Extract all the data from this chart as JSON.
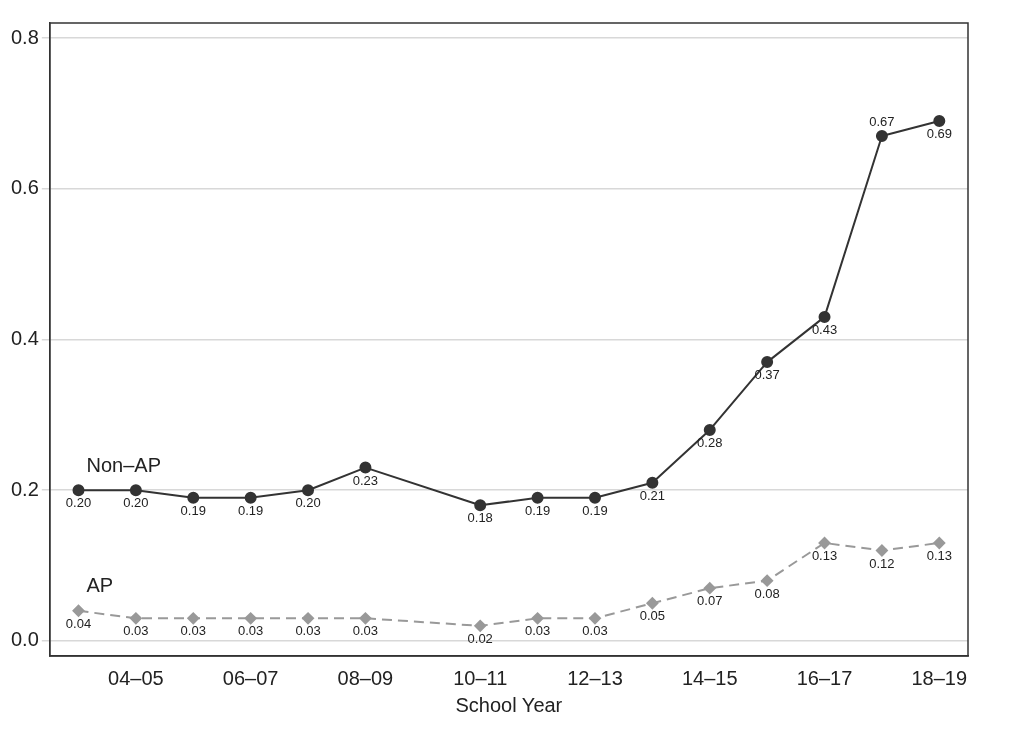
{
  "chart_data": {
    "type": "line",
    "xlabel": "School Year",
    "categories": [
      null,
      "04–05",
      null,
      "06–07",
      null,
      "08–09",
      null,
      "10–11",
      null,
      "12–13",
      null,
      "14–15",
      null,
      "16–17",
      null,
      "18–19"
    ],
    "series": [
      {
        "name": "Non–AP",
        "color": "#333333",
        "marker": "circle",
        "line_style": "solid",
        "values": [
          0.2,
          0.2,
          0.19,
          0.19,
          0.2,
          0.23,
          null,
          0.18,
          0.19,
          0.19,
          0.21,
          0.28,
          0.37,
          0.43,
          0.67,
          0.69
        ],
        "value_labels": [
          "0.20",
          "0.20",
          "0.19",
          "0.19",
          "0.20",
          "0.23",
          null,
          "0.18",
          "0.19",
          "0.19",
          "0.21",
          "0.28",
          "0.37",
          "0.43",
          "0.67",
          "0.69"
        ]
      },
      {
        "name": "AP",
        "color": "#999999",
        "marker": "diamond",
        "line_style": "dashed",
        "values": [
          0.04,
          0.03,
          0.03,
          0.03,
          0.03,
          0.03,
          null,
          0.02,
          0.03,
          0.03,
          0.05,
          0.07,
          0.08,
          0.13,
          0.12,
          0.13
        ],
        "value_labels": [
          "0.04",
          "0.03",
          "0.03",
          "0.03",
          "0.03",
          "0.03",
          null,
          "0.02",
          "0.03",
          "0.03",
          "0.05",
          "0.07",
          "0.08",
          "0.13",
          "0.12",
          "0.13"
        ]
      }
    ],
    "ylim": [
      -0.02,
      0.82
    ],
    "yticks": [
      {
        "value": 0,
        "label": "0.0"
      },
      {
        "value": 0.2,
        "label": "0.2"
      },
      {
        "value": 0.4,
        "label": "0.4"
      },
      {
        "value": 0.6,
        "label": "0.6"
      },
      {
        "value": 0.8,
        "label": "0.8"
      }
    ],
    "grid": "y",
    "legend": false
  }
}
